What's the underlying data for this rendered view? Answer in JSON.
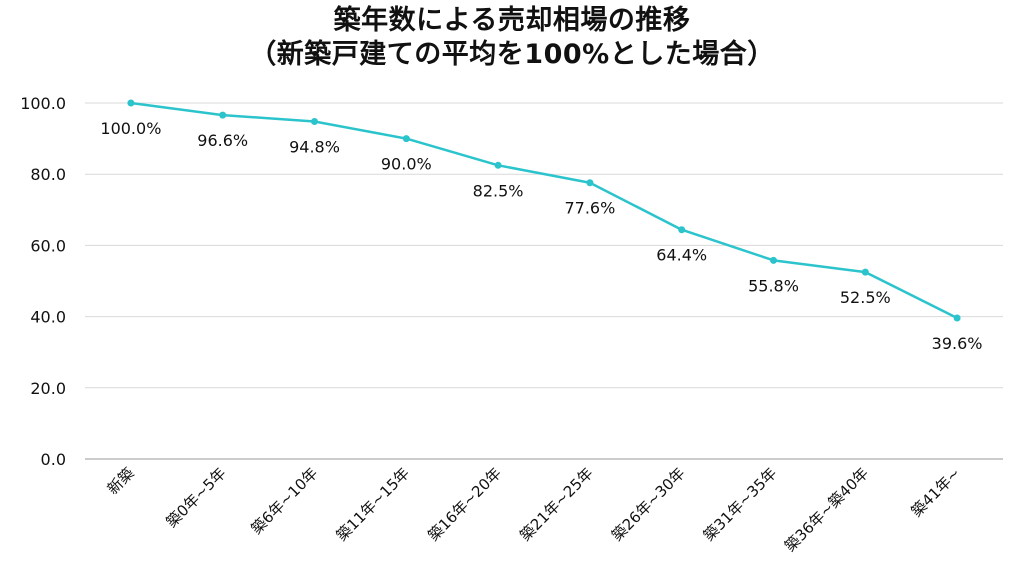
{
  "chart_data": {
    "type": "line",
    "title": [
      "築年数による売却相場の推移",
      "（新築戸建ての平均を100%とした場合）"
    ],
    "xlabel": "",
    "ylabel": "",
    "ylim": [
      0,
      100
    ],
    "yticks": [
      "0.0",
      "20.0",
      "40.0",
      "60.0",
      "80.0",
      "100.0"
    ],
    "grid": true,
    "line_color": "#2CC4CC",
    "categories": [
      "新築",
      "築0年~5年",
      "築6年~10年",
      "築11年~15年",
      "築16年~20年",
      "築21年~25年",
      "築26年~30年",
      "築31年~35年",
      "築36年~築40年",
      "築41年~"
    ],
    "values": [
      100.0,
      96.6,
      94.8,
      90.0,
      82.5,
      77.6,
      64.4,
      55.8,
      52.5,
      39.6
    ],
    "data_labels": [
      "100.0%",
      "96.6%",
      "94.8%",
      "90.0%",
      "82.5%",
      "77.6%",
      "64.4%",
      "55.8%",
      "52.5%",
      "39.6%"
    ]
  }
}
